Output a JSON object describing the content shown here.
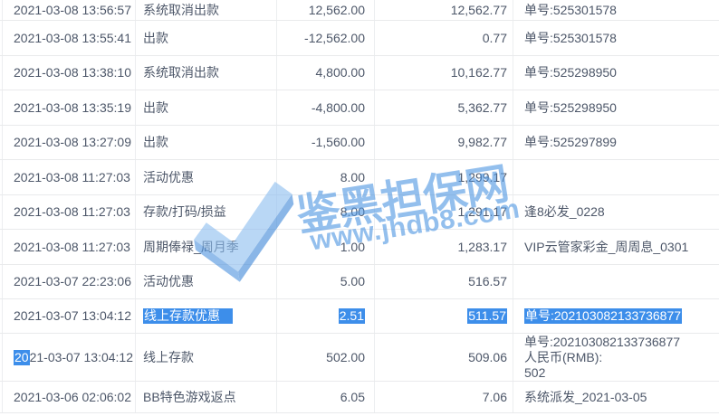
{
  "colors": {
    "text": "#4d5769",
    "row_border": "#e9eaec",
    "column_border": "#eceef0",
    "selection_bg": "#3d8eea",
    "selection_text": "#ffffff",
    "watermark_blue": "#4d95e2",
    "watermark_check_light": "#8cbdf0",
    "watermark_check_mid": "#4d92de",
    "watermark_check_dark": "#3d87d8"
  },
  "watermark": {
    "brand_text": "鉴黑担保网",
    "url_text": "www.jhdb8.com",
    "logo_icon": "check-badge-icon"
  },
  "transactions": {
    "fields": [
      "time",
      "type",
      "amount",
      "balance",
      "note"
    ],
    "rows": [
      {
        "time": "2021-03-08 13:56:57",
        "type": "系统取消出款",
        "amount": "12,562.00",
        "balance": "12,562.77",
        "note": "单号:525301578"
      },
      {
        "time": "2021-03-08 13:55:41",
        "type": "出款",
        "amount": "-12,562.00",
        "balance": "0.77",
        "note": "单号:525301578"
      },
      {
        "time": "2021-03-08 13:38:10",
        "type": "系统取消出款",
        "amount": "4,800.00",
        "balance": "10,162.77",
        "note": "单号:525298950"
      },
      {
        "time": "2021-03-08 13:35:19",
        "type": "出款",
        "amount": "-4,800.00",
        "balance": "5,362.77",
        "note": "单号:525298950"
      },
      {
        "time": "2021-03-08 13:27:09",
        "type": "出款",
        "amount": "-1,560.00",
        "balance": "9,982.77",
        "note": "单号:525297899"
      },
      {
        "time": "2021-03-08 11:27:03",
        "type": "活动优惠",
        "amount": "8.00",
        "balance": "1,299.17",
        "note": ""
      },
      {
        "time": "2021-03-08 11:27:03",
        "type": "存款/打码/损益",
        "amount": "8.00",
        "balance": "1,291.17",
        "note": "逢8必发_0228"
      },
      {
        "time": "2021-03-08 11:27:03",
        "type": "周期俸禄_周月季",
        "amount": "1.00",
        "balance": "1,283.17",
        "note": "VIP云管家彩金_周周息_0301"
      },
      {
        "time": "2021-03-07 22:23:06",
        "type": "活动优惠",
        "amount": "5.00",
        "balance": "516.57",
        "note": ""
      },
      {
        "time": "2021-03-07 13:04:12",
        "type": "线上存款优惠",
        "amount": "2.51",
        "balance": "511.57",
        "note": "单号:202103082133736877",
        "selected_fields": [
          "type",
          "amount",
          "balance",
          "note"
        ],
        "selection_trailing_space_on": "type"
      },
      {
        "time": "2021-03-07 13:04:12",
        "type": "线上存款",
        "amount": "502.00",
        "balance": "509.06",
        "note": "单号:202103082133736877\n人民币(RMB):\n502",
        "time_selected_prefix": "20"
      },
      {
        "time": "2021-03-06 02:06:02",
        "type": "BB特色游戏返点",
        "amount": "6.05",
        "balance": "7.06",
        "note": "系统派发_2021-03-05"
      }
    ]
  }
}
